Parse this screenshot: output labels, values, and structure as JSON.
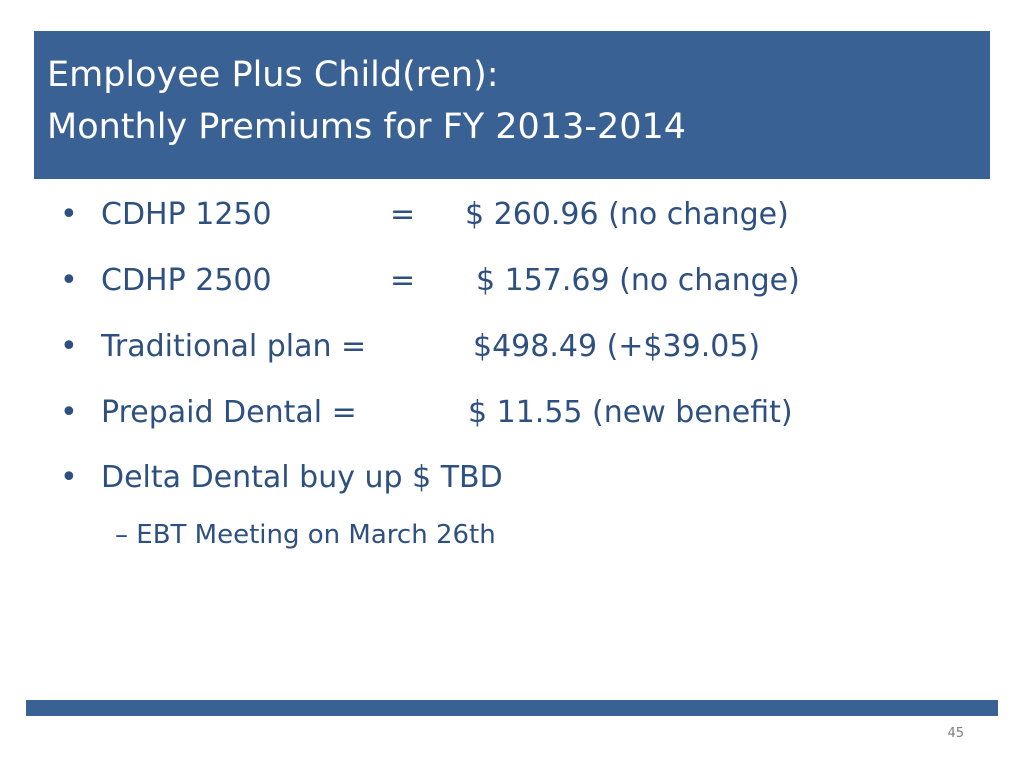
{
  "slide": {
    "title_line1": "Employee Plus Child(ren):",
    "title_line2": "Monthly Premiums for FY 2013-2014",
    "bullet_glyph": "•",
    "bullets": [
      {
        "label": "CDHP 1250",
        "eq": "=",
        "value": "$ 260.96 (no change)"
      },
      {
        "label": "CDHP 2500",
        "eq": "=",
        "value": "$ 157.69 (no change)"
      },
      {
        "label": "Traditional plan =",
        "eq": "",
        "value": "$498.49 (+$39.05)"
      },
      {
        "label": "Prepaid Dental  =",
        "eq": "",
        "value": "$ 11.55 (new benefit)"
      },
      {
        "label": "Delta Dental buy up  $ TBD",
        "eq": "",
        "value": ""
      }
    ],
    "sub_bullet": "– EBT Meeting on March 26th",
    "page_number": "45"
  },
  "colors": {
    "title_background": "#3a6193",
    "title_text": "#ffffff",
    "body_text": "#2e5081",
    "footer_bar": "#3a6193",
    "page_number_text": "#7f7f7f"
  }
}
